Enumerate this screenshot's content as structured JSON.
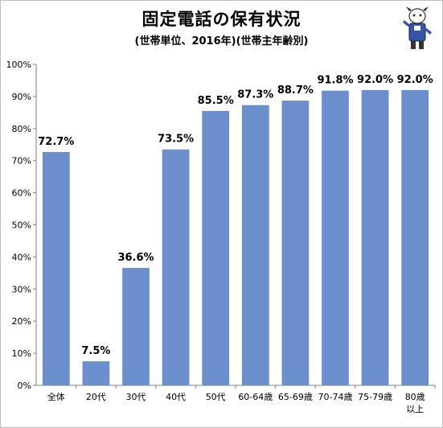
{
  "chart_data": {
    "type": "bar",
    "title": "固定電話の保有状況",
    "subtitle": "(世帯単位、2016年)(世帯主年齢別)",
    "categories": [
      "全体",
      "20代",
      "30代",
      "40代",
      "50代",
      "60-64歳",
      "65-69歳",
      "70-74歳",
      "75-79歳",
      "80歳\n以上"
    ],
    "values": [
      72.7,
      7.5,
      36.6,
      73.5,
      85.5,
      87.3,
      88.7,
      91.8,
      92.0,
      92.0
    ],
    "data_labels": [
      "72.7%",
      "7.5%",
      "36.6%",
      "73.5%",
      "85.5%",
      "87.3%",
      "88.7%",
      "91.8%",
      "92.0%",
      "92.0%"
    ],
    "y_ticks": [
      "0%",
      "10%",
      "20%",
      "30%",
      "40%",
      "50%",
      "60%",
      "70%",
      "80%",
      "90%",
      "100%"
    ],
    "ylim": [
      0,
      100
    ],
    "grid": false,
    "bar_color": "#6a8fcc"
  }
}
